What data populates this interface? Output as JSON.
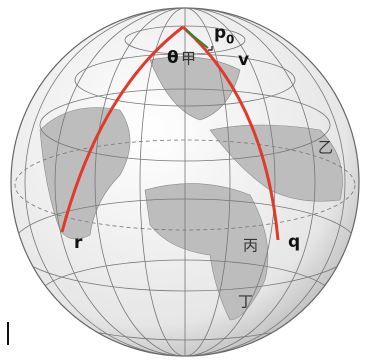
{
  "labels": {
    "p": "p",
    "p_sub": "0",
    "v": "v",
    "theta": "θ",
    "jia": "甲",
    "yi": "乙",
    "bing": "丙",
    "ding": "丁",
    "r": "r",
    "q": "q"
  }
}
